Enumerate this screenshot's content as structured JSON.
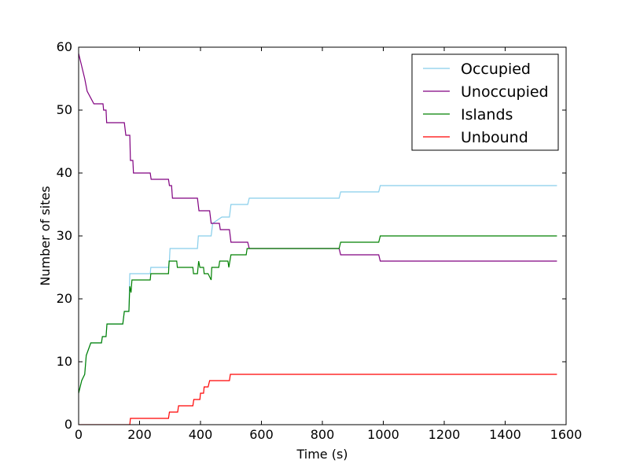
{
  "chart_data": {
    "type": "line",
    "title": "",
    "xlabel": "Time (s)",
    "ylabel": "Number of sites",
    "xlim": [
      0,
      1600
    ],
    "ylim": [
      0,
      60
    ],
    "xticks": [
      0,
      200,
      400,
      600,
      800,
      1000,
      1200,
      1400,
      1600
    ],
    "yticks": [
      0,
      10,
      20,
      30,
      40,
      50,
      60
    ],
    "grid": false,
    "legend_position": "top-right",
    "series": [
      {
        "name": "Occupied",
        "color": "#87ceeb",
        "points": [
          [
            0,
            5
          ],
          [
            5,
            6
          ],
          [
            10,
            7
          ],
          [
            20,
            8
          ],
          [
            25,
            11
          ],
          [
            40,
            13
          ],
          [
            75,
            13
          ],
          [
            78,
            14
          ],
          [
            90,
            14
          ],
          [
            93,
            16
          ],
          [
            145,
            16
          ],
          [
            150,
            18
          ],
          [
            165,
            18
          ],
          [
            168,
            24
          ],
          [
            235,
            24
          ],
          [
            237,
            25
          ],
          [
            295,
            25
          ],
          [
            298,
            26
          ],
          [
            300,
            28
          ],
          [
            390,
            28
          ],
          [
            393,
            30
          ],
          [
            435,
            30
          ],
          [
            440,
            32
          ],
          [
            470,
            33
          ],
          [
            495,
            33
          ],
          [
            500,
            35
          ],
          [
            555,
            35
          ],
          [
            560,
            36
          ],
          [
            855,
            36
          ],
          [
            860,
            37
          ],
          [
            985,
            37
          ],
          [
            990,
            38
          ],
          [
            1570,
            38
          ]
        ]
      },
      {
        "name": "Unoccupied",
        "color": "#800080",
        "points": [
          [
            0,
            59
          ],
          [
            10,
            57
          ],
          [
            20,
            55
          ],
          [
            28,
            53
          ],
          [
            50,
            51
          ],
          [
            80,
            51
          ],
          [
            82,
            50
          ],
          [
            90,
            50
          ],
          [
            92,
            48
          ],
          [
            150,
            48
          ],
          [
            155,
            46
          ],
          [
            168,
            46
          ],
          [
            170,
            42
          ],
          [
            178,
            42
          ],
          [
            180,
            40
          ],
          [
            235,
            40
          ],
          [
            238,
            39
          ],
          [
            295,
            39
          ],
          [
            298,
            38
          ],
          [
            305,
            38
          ],
          [
            308,
            36
          ],
          [
            390,
            36
          ],
          [
            395,
            34
          ],
          [
            430,
            34
          ],
          [
            435,
            32
          ],
          [
            462,
            32
          ],
          [
            465,
            31
          ],
          [
            495,
            31
          ],
          [
            500,
            29
          ],
          [
            555,
            29
          ],
          [
            560,
            28
          ],
          [
            855,
            28
          ],
          [
            860,
            27
          ],
          [
            985,
            27
          ],
          [
            990,
            26
          ],
          [
            1570,
            26
          ]
        ]
      },
      {
        "name": "Islands",
        "color": "#008000",
        "points": [
          [
            0,
            5
          ],
          [
            5,
            6
          ],
          [
            10,
            7
          ],
          [
            20,
            8
          ],
          [
            25,
            11
          ],
          [
            40,
            13
          ],
          [
            75,
            13
          ],
          [
            78,
            14
          ],
          [
            90,
            14
          ],
          [
            93,
            16
          ],
          [
            145,
            16
          ],
          [
            150,
            18
          ],
          [
            165,
            18
          ],
          [
            168,
            22
          ],
          [
            172,
            21
          ],
          [
            175,
            23
          ],
          [
            235,
            23
          ],
          [
            237,
            24
          ],
          [
            295,
            24
          ],
          [
            297,
            26
          ],
          [
            322,
            26
          ],
          [
            324,
            25
          ],
          [
            375,
            25
          ],
          [
            377,
            24
          ],
          [
            390,
            24
          ],
          [
            394,
            26
          ],
          [
            398,
            25
          ],
          [
            410,
            25
          ],
          [
            412,
            24
          ],
          [
            425,
            24
          ],
          [
            435,
            23
          ],
          [
            437,
            25
          ],
          [
            460,
            25
          ],
          [
            463,
            26
          ],
          [
            490,
            26
          ],
          [
            493,
            25
          ],
          [
            500,
            27
          ],
          [
            550,
            27
          ],
          [
            553,
            28
          ],
          [
            855,
            28
          ],
          [
            860,
            29
          ],
          [
            985,
            29
          ],
          [
            990,
            30
          ],
          [
            1570,
            30
          ]
        ]
      },
      {
        "name": "Unbound",
        "color": "#ff0000",
        "points": [
          [
            0,
            0
          ],
          [
            168,
            0
          ],
          [
            170,
            1
          ],
          [
            295,
            1
          ],
          [
            298,
            2
          ],
          [
            325,
            2
          ],
          [
            328,
            3
          ],
          [
            375,
            3
          ],
          [
            378,
            4
          ],
          [
            398,
            4
          ],
          [
            400,
            5
          ],
          [
            410,
            5
          ],
          [
            412,
            6
          ],
          [
            425,
            6
          ],
          [
            430,
            7
          ],
          [
            495,
            7
          ],
          [
            498,
            8
          ],
          [
            1570,
            8
          ]
        ]
      }
    ]
  }
}
